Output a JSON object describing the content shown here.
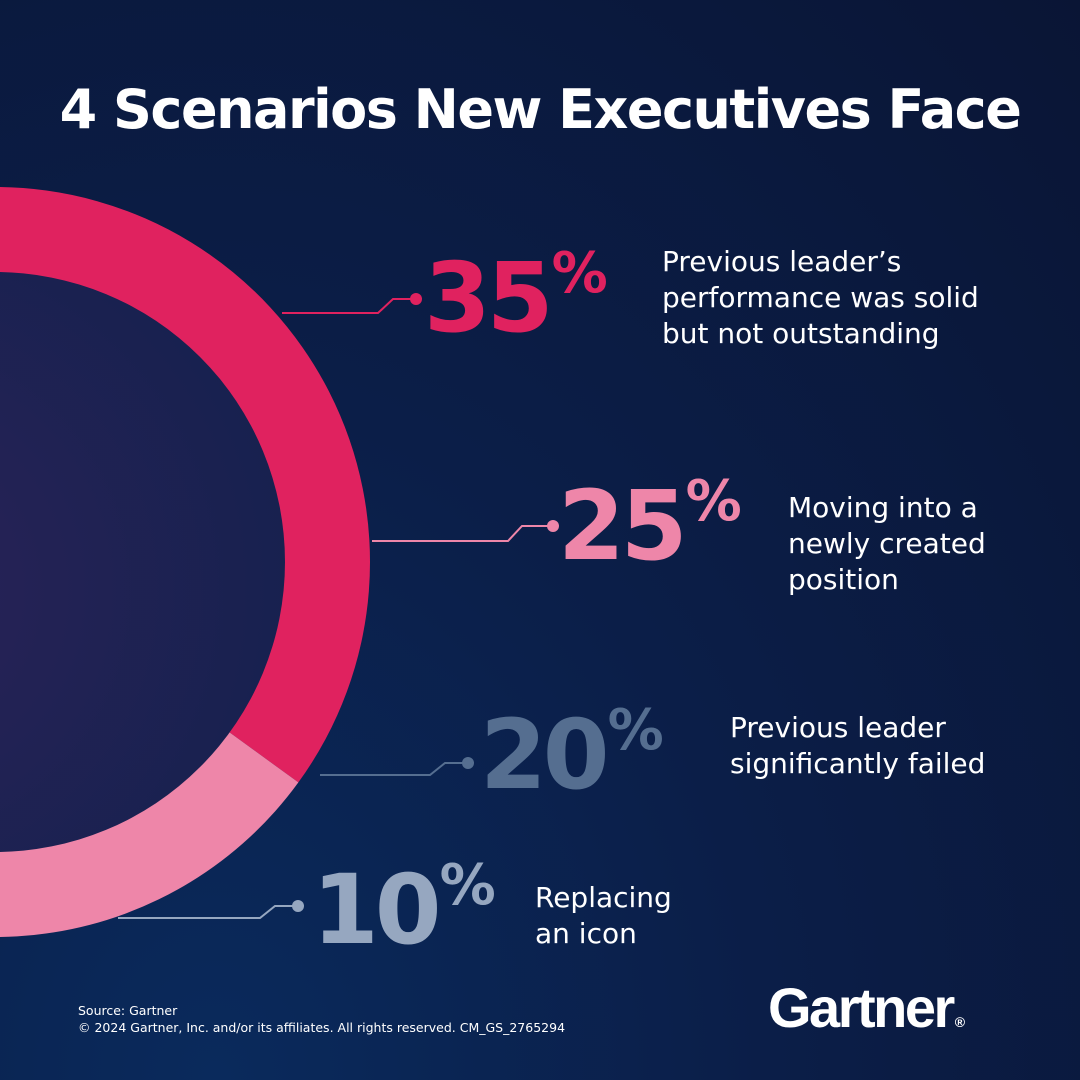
{
  "header": {
    "title": "4 Scenarios New Executives Face"
  },
  "chart_data": {
    "type": "pie",
    "variant": "donut",
    "title": "4 Scenarios New Executives Face",
    "unit": "%",
    "categories": [
      "Previous leader’s\nperformance was solid\nbut not outstanding",
      "Moving into a\nnewly created\nposition",
      "Previous leader\nsignificantly failed",
      "Replacing\nan icon"
    ],
    "values": [
      35,
      25,
      20,
      10
    ],
    "colors": [
      "#e0225f",
      "#ee86a9",
      "#556e90",
      "#96a7c0"
    ]
  },
  "footer": {
    "source": "Source: Gartner",
    "copyright": "© 2024 Gartner, Inc. and/or its affiliates. All rights reserved. CM_GS_2765294"
  },
  "brand": {
    "logo_text": "Gartner",
    "registered_mark": "®"
  },
  "colors": {
    "background": "#0b1e48",
    "center": "#1c2150",
    "text": "#ffffff"
  }
}
